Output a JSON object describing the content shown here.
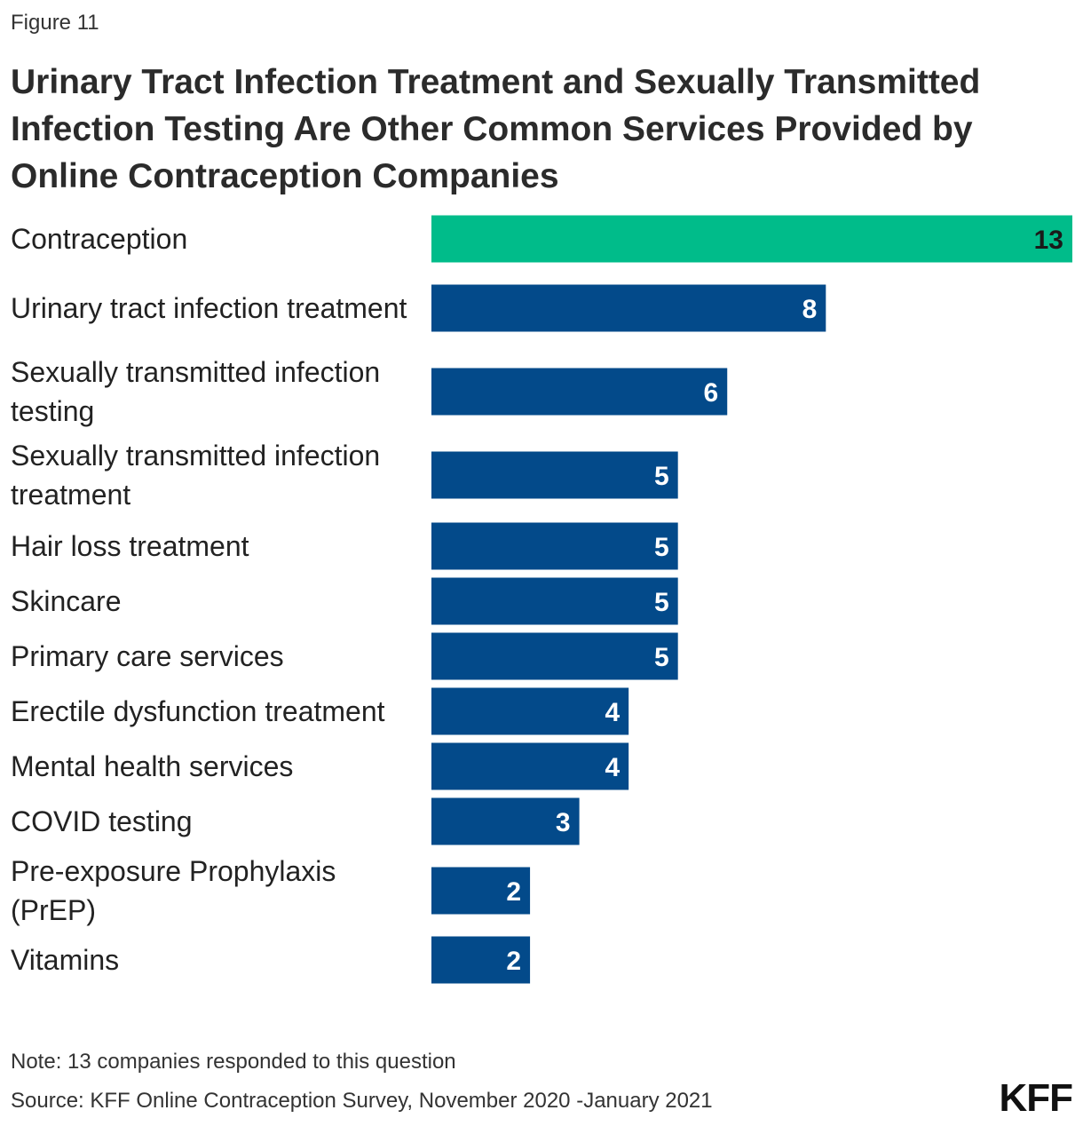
{
  "figure_label": "Figure 11",
  "title": "Urinary Tract Infection Treatment and Sexually Transmitted Infection Testing Are Other Common Services Provided by Online Contraception Companies",
  "note": "Note: 13 companies responded to this question",
  "source": "Source: KFF Online Contraception Survey, November 2020 -January 2021",
  "logo_text": "KFF",
  "colors": {
    "highlight": "#00BC8A",
    "bar": "#034A8A",
    "label_on_highlight": "#1a1a1a",
    "label_on_bar": "#ffffff"
  },
  "chart_data": {
    "type": "bar",
    "orientation": "horizontal",
    "categories": [
      "Contraception",
      "Urinary tract infection treatment",
      "Sexually transmitted infection testing",
      "Sexually transmitted infection treatment",
      "Hair loss treatment",
      "Skincare",
      "Primary care services",
      "Erectile dysfunction treatment",
      "Mental health services",
      "COVID testing",
      "Pre-exposure Prophylaxis (PrEP)",
      "Vitamins"
    ],
    "values": [
      13,
      8,
      6,
      5,
      5,
      5,
      5,
      4,
      4,
      3,
      2,
      2
    ],
    "highlight_index": 0,
    "xlim": [
      0,
      13
    ],
    "grid": false,
    "legend": "none",
    "data_labels": true
  }
}
